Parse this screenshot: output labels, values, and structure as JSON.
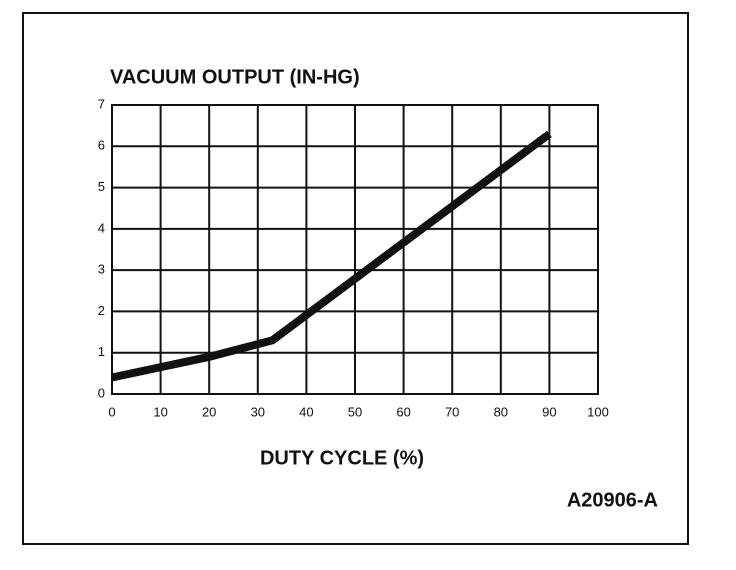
{
  "chart_data": {
    "type": "line",
    "title": "VACUUM OUTPUT (IN-HG)",
    "x_label": "DUTY CYCLE (%)",
    "annotation": "A20906-A",
    "x": [
      0,
      20,
      33,
      90
    ],
    "values": [
      0.4,
      0.9,
      1.3,
      6.3
    ],
    "color": "#111111",
    "xlim": [
      0,
      100
    ],
    "xticks": [
      0,
      10,
      20,
      30,
      40,
      50,
      60,
      70,
      80,
      90,
      100
    ],
    "ylim": [
      0,
      7
    ],
    "yticks": [
      0,
      1,
      2,
      3,
      4,
      5,
      6,
      7
    ],
    "grid": true
  }
}
